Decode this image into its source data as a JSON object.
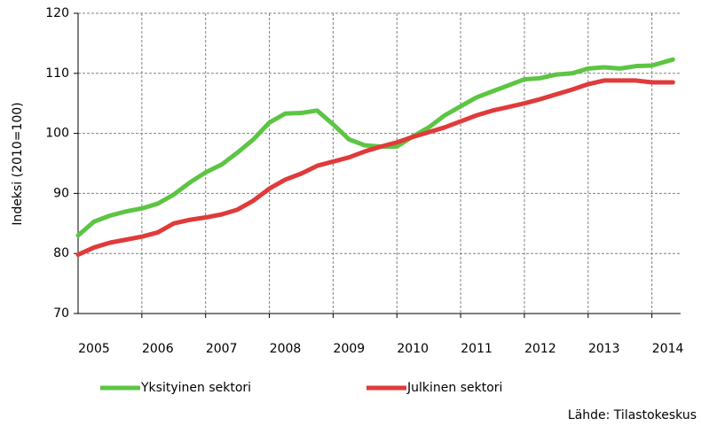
{
  "chart_data": {
    "type": "line",
    "y_label": "Indeksi (2010=100)",
    "source": "Lähde: Tilastokeskus",
    "x": [
      2005,
      2005.25,
      2005.5,
      2005.75,
      2006,
      2006.25,
      2006.5,
      2006.75,
      2007,
      2007.25,
      2007.5,
      2007.75,
      2008,
      2008.25,
      2008.5,
      2008.75,
      2009,
      2009.25,
      2009.5,
      2009.75,
      2010,
      2010.25,
      2010.5,
      2010.75,
      2011,
      2011.25,
      2011.5,
      2011.75,
      2012,
      2012.25,
      2012.5,
      2012.75,
      2013,
      2013.25,
      2013.5,
      2013.75,
      2014,
      2014.33
    ],
    "series": [
      {
        "name": "Yksityinen sektori",
        "color": "#5cc543",
        "values": [
          83,
          85.3,
          86.3,
          87,
          87.5,
          88.3,
          89.8,
          91.8,
          93.5,
          94.8,
          96.8,
          99,
          101.8,
          103.3,
          103.4,
          103.8,
          101.5,
          99,
          98,
          97.8,
          97.8,
          99.5,
          101,
          103,
          104.5,
          106,
          107,
          108,
          109,
          109.2,
          109.8,
          110,
          110.8,
          111,
          110.8,
          111.2,
          111.3,
          112.3
        ]
      },
      {
        "name": "Julkinen sektori",
        "color": "#e03a3a",
        "values": [
          79.8,
          81,
          81.8,
          82.3,
          82.8,
          83.5,
          85,
          85.6,
          86,
          86.5,
          87.3,
          88.8,
          90.8,
          92.3,
          93.3,
          94.6,
          95.3,
          96,
          97,
          97.8,
          98.5,
          99.4,
          100.2,
          101,
          102,
          103,
          103.8,
          104.4,
          105,
          105.7,
          106.5,
          107.3,
          108.2,
          108.8,
          108.8,
          108.8,
          108.5,
          108.5
        ]
      }
    ],
    "xlim": [
      2005,
      2014.45
    ],
    "xticks": [
      2005,
      2006,
      2007,
      2008,
      2009,
      2010,
      2011,
      2012,
      2013,
      2014
    ],
    "ylim": [
      70,
      120
    ],
    "yticks": [
      70,
      80,
      90,
      100,
      110,
      120
    ],
    "grid": true
  }
}
